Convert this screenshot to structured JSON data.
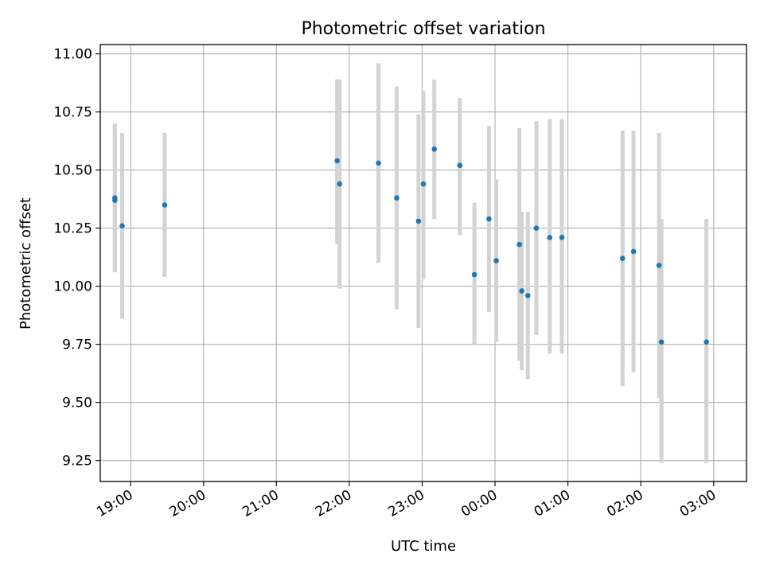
{
  "chart_data": {
    "type": "scatter",
    "title": "Photometric offset variation",
    "xlabel": "UTC time",
    "ylabel": "Photometric offset",
    "grid": true,
    "colors": {
      "points": "#1f77b4",
      "errorbars": "#d3d3d3"
    },
    "xlim": [
      "18:35",
      "03:27"
    ],
    "ylim": [
      9.16,
      11.04
    ],
    "x_ticks": [
      "19:00",
      "20:00",
      "21:00",
      "22:00",
      "23:00",
      "00:00",
      "01:00",
      "02:00",
      "03:00"
    ],
    "y_ticks": [
      "9.25",
      "9.50",
      "9.75",
      "10.00",
      "10.25",
      "10.50",
      "10.75",
      "11.00"
    ],
    "series": [
      {
        "points": [
          {
            "x": "18:47",
            "y": 10.38,
            "ylo": 10.06,
            "yhi": 10.7
          },
          {
            "x": "18:47",
            "y": 10.37,
            "ylo": 10.06,
            "yhi": 10.7
          },
          {
            "x": "18:53",
            "y": 10.26,
            "ylo": 9.86,
            "yhi": 10.66
          },
          {
            "x": "19:28",
            "y": 10.35,
            "ylo": 10.04,
            "yhi": 10.66
          },
          {
            "x": "21:50",
            "y": 10.54,
            "ylo": 10.18,
            "yhi": 10.89
          },
          {
            "x": "21:52",
            "y": 10.44,
            "ylo": 9.99,
            "yhi": 10.89
          },
          {
            "x": "22:24",
            "y": 10.53,
            "ylo": 10.1,
            "yhi": 10.96
          },
          {
            "x": "22:39",
            "y": 10.38,
            "ylo": 9.9,
            "yhi": 10.86
          },
          {
            "x": "22:57",
            "y": 10.28,
            "ylo": 9.82,
            "yhi": 10.74
          },
          {
            "x": "23:01",
            "y": 10.44,
            "ylo": 10.03,
            "yhi": 10.84
          },
          {
            "x": "23:10",
            "y": 10.59,
            "ylo": 10.29,
            "yhi": 10.89
          },
          {
            "x": "23:31",
            "y": 10.52,
            "ylo": 10.22,
            "yhi": 10.81
          },
          {
            "x": "23:43",
            "y": 10.05,
            "ylo": 9.75,
            "yhi": 10.36
          },
          {
            "x": "23:55",
            "y": 10.29,
            "ylo": 9.89,
            "yhi": 10.69
          },
          {
            "x": "00:01",
            "y": 10.11,
            "ylo": 9.76,
            "yhi": 10.46
          },
          {
            "x": "00:20",
            "y": 10.18,
            "ylo": 9.68,
            "yhi": 10.68
          },
          {
            "x": "00:22",
            "y": 9.98,
            "ylo": 9.64,
            "yhi": 10.32
          },
          {
            "x": "00:27",
            "y": 9.96,
            "ylo": 9.6,
            "yhi": 10.32
          },
          {
            "x": "00:34",
            "y": 10.25,
            "ylo": 9.79,
            "yhi": 10.71
          },
          {
            "x": "00:45",
            "y": 10.21,
            "ylo": 9.71,
            "yhi": 10.72
          },
          {
            "x": "00:55",
            "y": 10.21,
            "ylo": 9.71,
            "yhi": 10.72
          },
          {
            "x": "01:45",
            "y": 10.12,
            "ylo": 9.57,
            "yhi": 10.67
          },
          {
            "x": "01:54",
            "y": 10.15,
            "ylo": 9.63,
            "yhi": 10.67
          },
          {
            "x": "02:15",
            "y": 10.09,
            "ylo": 9.52,
            "yhi": 10.66
          },
          {
            "x": "02:17",
            "y": 9.76,
            "ylo": 9.24,
            "yhi": 10.29
          },
          {
            "x": "02:54",
            "y": 9.76,
            "ylo": 9.24,
            "yhi": 10.29
          }
        ]
      }
    ]
  }
}
